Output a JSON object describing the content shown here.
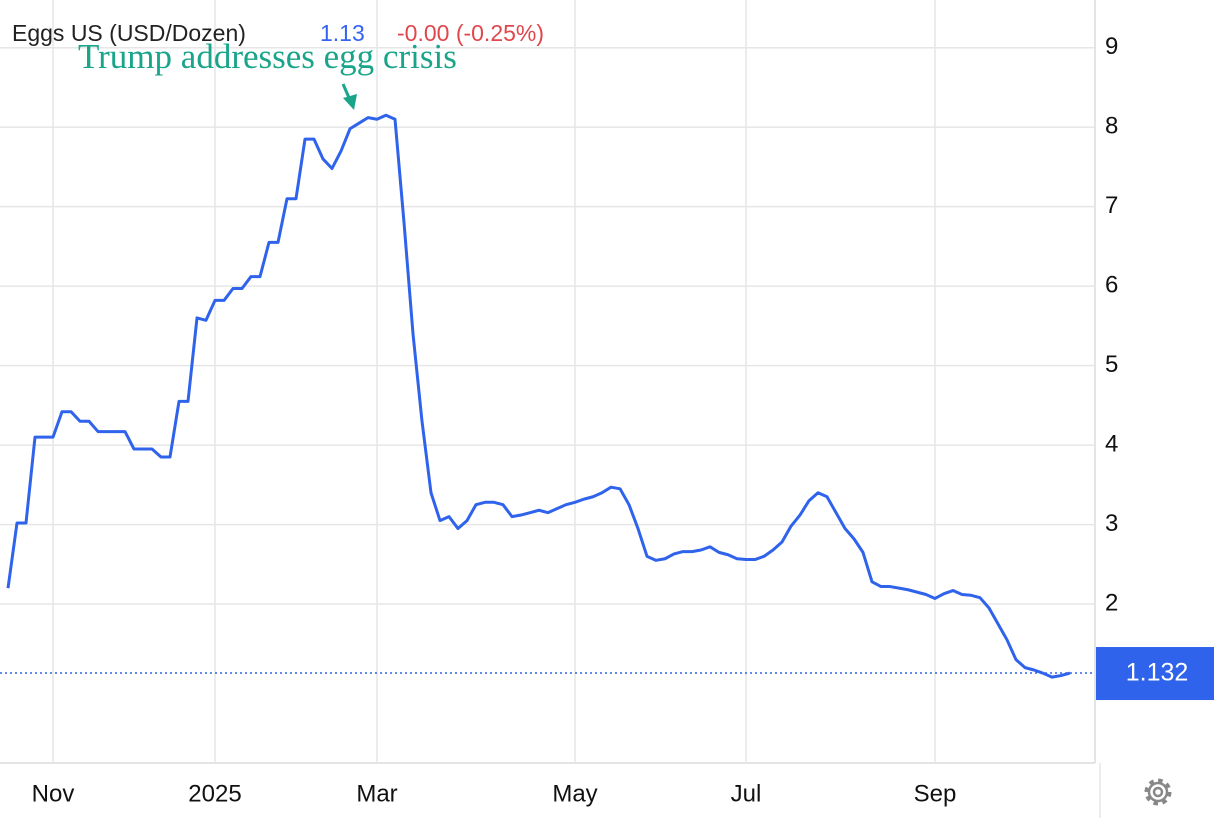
{
  "chart_data": {
    "type": "line",
    "title": "Eggs US (USD/Dozen)",
    "last_price": "1.13",
    "change": "-0.00 (-0.25%)",
    "annotations": [
      {
        "text": "Trump addresses egg crisis"
      }
    ],
    "color": "#2f63ec",
    "categories": [
      null,
      null,
      null,
      null,
      null,
      "Nov",
      null,
      null,
      null,
      null,
      null,
      null,
      null,
      null,
      null,
      null,
      null,
      null,
      null,
      null,
      null,
      null,
      null,
      "2025",
      null,
      null,
      null,
      null,
      null,
      null,
      null,
      null,
      null,
      null,
      null,
      null,
      null,
      null,
      null,
      null,
      null,
      "Mar",
      null,
      null,
      null,
      null,
      null,
      null,
      null,
      null,
      null,
      null,
      null,
      null,
      null,
      null,
      null,
      null,
      null,
      null,
      null,
      null,
      null,
      "May",
      null,
      null,
      null,
      null,
      null,
      null,
      null,
      null,
      null,
      null,
      null,
      null,
      null,
      null,
      null,
      null,
      null,
      null,
      "Jul",
      null,
      null,
      null,
      null,
      null,
      null,
      null,
      null,
      null,
      null,
      null,
      null,
      null,
      null,
      null,
      null,
      null,
      null,
      null,
      null,
      "Sep",
      null,
      null,
      null,
      null,
      null,
      null,
      null,
      null,
      null,
      null,
      null,
      null,
      null,
      null,
      null
    ],
    "values": [
      2.2,
      3.02,
      3.02,
      4.1,
      4.1,
      4.1,
      4.42,
      4.42,
      4.3,
      4.3,
      4.17,
      4.17,
      4.17,
      4.17,
      3.95,
      3.95,
      3.95,
      3.85,
      3.85,
      4.55,
      4.55,
      5.6,
      5.57,
      5.82,
      5.82,
      5.97,
      5.97,
      6.12,
      6.12,
      6.55,
      6.55,
      7.1,
      7.1,
      7.85,
      7.85,
      7.6,
      7.48,
      7.7,
      7.98,
      8.05,
      8.12,
      8.1,
      8.15,
      8.1,
      6.8,
      5.4,
      4.3,
      3.4,
      3.05,
      3.1,
      2.95,
      3.05,
      3.25,
      3.28,
      3.28,
      3.25,
      3.1,
      3.12,
      3.15,
      3.18,
      3.15,
      3.2,
      3.25,
      3.28,
      3.32,
      3.35,
      3.4,
      3.47,
      3.45,
      3.25,
      2.95,
      2.6,
      2.55,
      2.57,
      2.63,
      2.66,
      2.66,
      2.68,
      2.72,
      2.65,
      2.62,
      2.57,
      2.56,
      2.56,
      2.6,
      2.68,
      2.78,
      2.98,
      3.12,
      3.3,
      3.4,
      3.35,
      3.15,
      2.95,
      2.82,
      2.65,
      2.28,
      2.22,
      2.22,
      2.2,
      2.18,
      2.15,
      2.12,
      2.07,
      2.13,
      2.17,
      2.12,
      2.11,
      2.08,
      1.95,
      1.75,
      1.55,
      1.3,
      1.2,
      1.17,
      1.13,
      1.08,
      1.1,
      1.132
    ],
    "last_value": 1.132,
    "ylim": [
      0,
      9.6
    ],
    "yticks": [
      2,
      3,
      4,
      5,
      6,
      7,
      8,
      9
    ],
    "grid": true
  }
}
